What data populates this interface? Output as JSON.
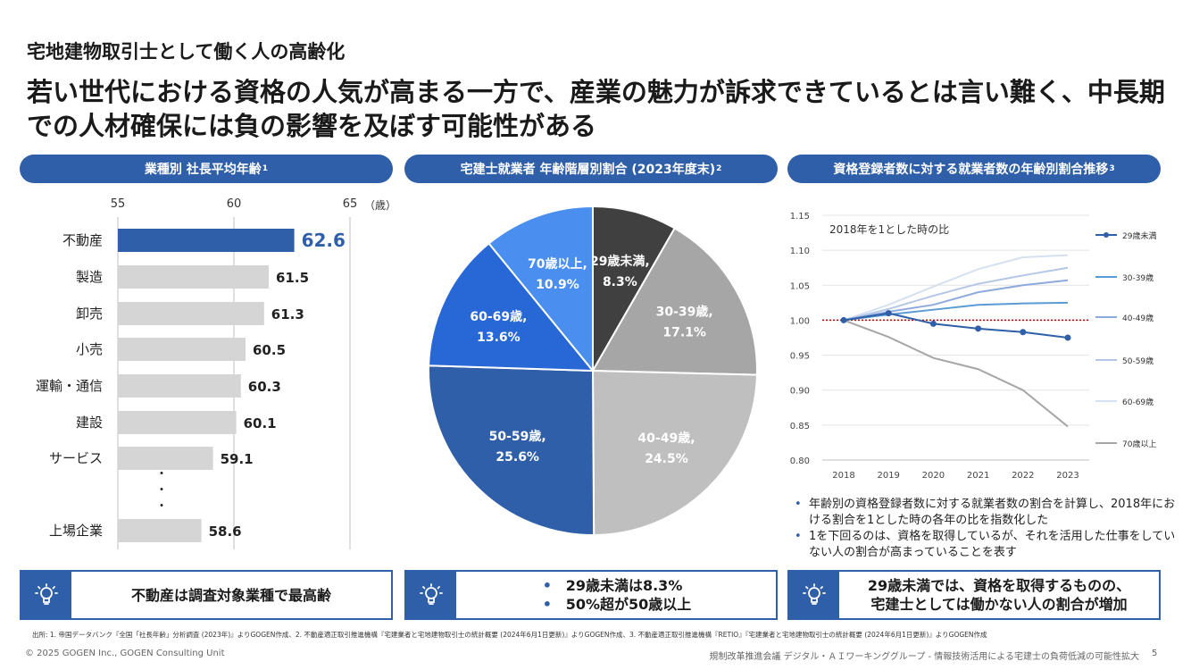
{
  "header": {
    "subtitle": "宅地建物取引士として働く人の高齢化",
    "headline": "若い世代における資格の人気が高まる一方で、産業の魅力が訴求できているとは言い難く、中長期での人材確保には負の影響を及ぼす可能性がある"
  },
  "panels": {
    "bar": {
      "title": "業種別 社長平均年齢",
      "sup": "1"
    },
    "pie": {
      "title": "宅建士就業者 年齢階層別割合 (2023年度末)",
      "sup": "2"
    },
    "line": {
      "title": "資格登録者数に対する就業者数の年齢別割合推移",
      "sup": "3"
    }
  },
  "colors": {
    "accent": "#2f5fa8",
    "bar_highlight": "#2f5fa8",
    "bar_default": "#d5d5d5",
    "reference_line": "#c00000"
  },
  "chart_data": [
    {
      "type": "bar",
      "orientation": "horizontal",
      "unit_label": "（歳）",
      "xlim": [
        55,
        65
      ],
      "xticks": [
        55,
        60,
        65
      ],
      "categories": [
        "不動産",
        "製造",
        "卸売",
        "小売",
        "運輸・通信",
        "建設",
        "サービス",
        "上場企業"
      ],
      "values": [
        62.6,
        61.5,
        61.3,
        60.5,
        60.3,
        60.1,
        59.1,
        58.6
      ],
      "value_labels": [
        "62.6",
        "61.5",
        "61.3",
        "60.5",
        "60.3",
        "60.1",
        "59.1",
        "58.6"
      ],
      "highlight": "不動産",
      "ellipsis": "・"
    },
    {
      "type": "pie",
      "slices": [
        {
          "label": "29歳未満,",
          "pct_label": "8.3%",
          "value": 8.3,
          "color": "#404040",
          "text_color": "#ffffff"
        },
        {
          "label": "30-39歳,",
          "pct_label": "17.1%",
          "value": 17.1,
          "color": "#a6a6a6",
          "text_color": "#ffffff"
        },
        {
          "label": "40-49歳,",
          "pct_label": "24.5%",
          "value": 24.5,
          "color": "#bfbfbf",
          "text_color": "#ffffff"
        },
        {
          "label": "50-59歳,",
          "pct_label": "25.6%",
          "value": 25.6,
          "color": "#2f5fa8",
          "text_color": "#ffffff"
        },
        {
          "label": "60-69歳,",
          "pct_label": "13.6%",
          "value": 13.6,
          "color": "#2868d6",
          "text_color": "#ffffff"
        },
        {
          "label": "70歳以上,",
          "pct_label": "10.9%",
          "value": 10.9,
          "color": "#4a8ff0",
          "text_color": "#ffffff"
        }
      ]
    },
    {
      "type": "line",
      "annotation": "2018年を1とした時の比",
      "x": [
        2018,
        2019,
        2020,
        2021,
        2022,
        2023
      ],
      "ylim": [
        0.8,
        1.15
      ],
      "yticks": [
        "0.80",
        "0.85",
        "0.90",
        "0.95",
        "1.00",
        "1.05",
        "1.10",
        "1.15"
      ],
      "reference": 1.0,
      "series": [
        {
          "name": "29歳未満",
          "values": [
            1.0,
            1.01,
            0.995,
            0.988,
            0.983,
            0.975
          ],
          "color": "#2f5fa8",
          "markers": true
        },
        {
          "name": "30-39歳",
          "values": [
            1.0,
            1.008,
            1.015,
            1.022,
            1.024,
            1.025
          ],
          "color": "#5b9bd5",
          "markers": false
        },
        {
          "name": "40-49歳",
          "values": [
            1.0,
            1.012,
            1.022,
            1.04,
            1.05,
            1.057
          ],
          "color": "#8faadc",
          "markers": false
        },
        {
          "name": "50-59歳",
          "values": [
            1.0,
            1.016,
            1.035,
            1.052,
            1.064,
            1.075
          ],
          "color": "#b4c7e7",
          "markers": false
        },
        {
          "name": "60-69歳",
          "values": [
            1.0,
            1.022,
            1.048,
            1.073,
            1.09,
            1.093
          ],
          "color": "#d6e0f0",
          "markers": false
        },
        {
          "name": "70歳以上",
          "values": [
            1.0,
            0.976,
            0.946,
            0.93,
            0.9,
            0.848
          ],
          "color": "#a6a6a6",
          "markers": false
        }
      ]
    }
  ],
  "notes": [
    "年齢別の資格登録者数に対する就業者数の割合を計算し、2018年における割合を1とした時の各年の比を指数化した",
    "1を下回るのは、資格を取得しているが、それを活用した仕事をしていない人の割合が高まっていることを表す"
  ],
  "takeaways": {
    "left": "不動産は調査対象業種で最高齢",
    "middle": [
      "29歳未満は8.3%",
      "50%超が50歳以上"
    ],
    "right": [
      "29歳未満では、資格を取得するものの、",
      "宅建士としては働かない人の割合が増加"
    ]
  },
  "footer": {
    "source": "出所: 1. 帝国データバンク『全国「社長年齢」分析調査 (2023年)』よりGOGEN作成、2. 不動産適正取引推進機構『宅建業者と宅地建物取引士の統計概要 (2024年6月1日更新)』よりGOGEN作成、3. 不動産適正取引推進機構『RETIO』『宅建業者と宅地建物取引士の統計概要 (2024年6月1日更新)』よりGOGEN作成",
    "copyright": "© 2025 GOGEN Inc., GOGEN Consulting Unit",
    "meeting": "規制改革推進会議 デジタル・ＡＩワーキンググループ - 情報技術活用による宅建士の負荷低減の可能性拡大",
    "page": "5"
  }
}
